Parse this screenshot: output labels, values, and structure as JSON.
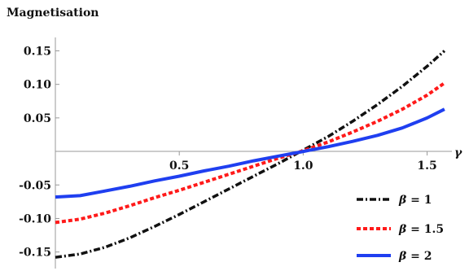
{
  "chart_data": {
    "type": "line",
    "ylabel": "Magnetisation",
    "xlabel": "γ",
    "xlim": [
      0,
      1.6
    ],
    "ylim": [
      -0.165,
      0.17
    ],
    "x_ticks": [
      {
        "value": 0.5,
        "label": "0.5"
      },
      {
        "value": 1.0,
        "label": "1.0"
      },
      {
        "value": 1.5,
        "label": "1.5"
      }
    ],
    "y_ticks": [
      {
        "value": 0.15,
        "label": "0.15"
      },
      {
        "value": 0.1,
        "label": "0.10"
      },
      {
        "value": 0.05,
        "label": "0.05"
      },
      {
        "value": -0.05,
        "label": "-0.05"
      },
      {
        "value": -0.1,
        "label": "-0.10"
      },
      {
        "value": -0.15,
        "label": "-0.15"
      }
    ],
    "grid": false,
    "legend_position": "bottom-right",
    "series": [
      {
        "name": "β = 1",
        "greek": "β",
        "value_text": "= 1",
        "color": "#111111",
        "style": "dash-dot",
        "x": [
          0.0,
          0.1,
          0.2,
          0.3,
          0.4,
          0.5,
          0.6,
          0.7,
          0.8,
          0.9,
          1.0,
          1.1,
          1.2,
          1.3,
          1.4,
          1.5,
          1.57
        ],
        "y": [
          -0.158,
          -0.153,
          -0.143,
          -0.129,
          -0.112,
          -0.094,
          -0.075,
          -0.056,
          -0.037,
          -0.018,
          0.002,
          0.022,
          0.045,
          0.07,
          0.097,
          0.127,
          0.15
        ]
      },
      {
        "name": "β = 1.5",
        "greek": "β",
        "value_text": "= 1.5",
        "color": "#ff1a1a",
        "style": "dotted",
        "x": [
          0.0,
          0.1,
          0.2,
          0.3,
          0.4,
          0.5,
          0.6,
          0.7,
          0.8,
          0.9,
          1.0,
          1.1,
          1.2,
          1.3,
          1.4,
          1.5,
          1.57
        ],
        "y": [
          -0.106,
          -0.101,
          -0.092,
          -0.081,
          -0.069,
          -0.058,
          -0.046,
          -0.034,
          -0.022,
          -0.01,
          0.001,
          0.014,
          0.029,
          0.045,
          0.063,
          0.084,
          0.102
        ]
      },
      {
        "name": "β = 2",
        "greek": "β",
        "value_text": "= 2",
        "color": "#1f3ff0",
        "style": "solid",
        "x": [
          0.0,
          0.1,
          0.2,
          0.3,
          0.4,
          0.5,
          0.6,
          0.7,
          0.8,
          0.9,
          1.0,
          1.1,
          1.2,
          1.3,
          1.4,
          1.5,
          1.57
        ],
        "y": [
          -0.068,
          -0.066,
          -0.059,
          -0.052,
          -0.044,
          -0.037,
          -0.029,
          -0.022,
          -0.014,
          -0.007,
          0.0,
          0.007,
          0.015,
          0.024,
          0.035,
          0.05,
          0.063
        ]
      }
    ]
  }
}
